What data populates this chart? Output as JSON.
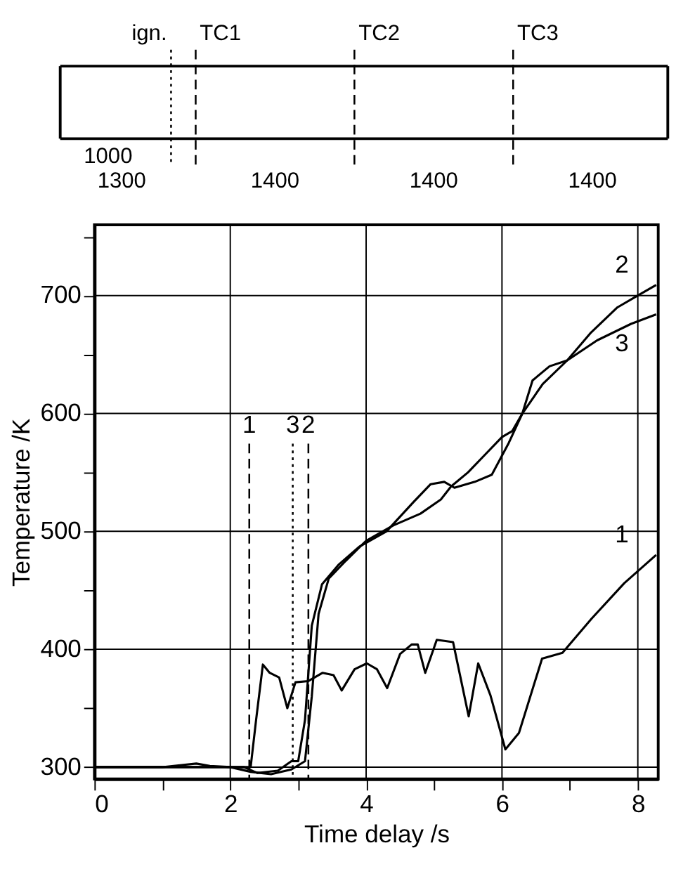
{
  "chart_data": [
    {
      "type": "other",
      "annotations": [
        "ign.",
        "TC1",
        "TC2",
        "TC3",
        "1000",
        "1300",
        "1400",
        "1400",
        "1400"
      ]
    },
    {
      "type": "line",
      "xlabel": "Time delay /s",
      "ylabel": "Temperature /K",
      "xlim": [
        0,
        8.3
      ],
      "ylim": [
        290,
        760
      ],
      "xticks": [
        0,
        {
          "value": 1,
          "label": null
        },
        2,
        {
          "value": 3,
          "label": null
        },
        4,
        {
          "value": 5,
          "label": null
        },
        6,
        {
          "value": 7,
          "label": null
        },
        8
      ],
      "yticks": [
        300,
        {
          "value": 350,
          "label": null
        },
        400,
        {
          "value": 450,
          "label": null
        },
        500,
        {
          "value": 550,
          "label": null
        },
        600,
        {
          "value": 650,
          "label": null
        },
        700,
        {
          "value": 750,
          "label": null
        }
      ],
      "grid": true,
      "line_style": "solid",
      "series": [
        {
          "color": "#000000",
          "x": [
            0,
            1,
            1.5,
            1.7,
            2.0,
            2.3,
            2.38,
            2.48,
            2.58,
            2.72,
            2.84,
            2.96,
            3.15,
            3.36,
            3.52,
            3.64,
            3.83,
            4.01,
            4.16,
            4.31,
            4.5,
            4.67,
            4.76,
            4.87,
            5.04,
            5.28,
            5.51,
            5.65,
            5.83,
            6.05,
            6.25,
            6.59,
            6.89,
            7.32,
            7.8,
            8.27
          ],
          "values": [
            300,
            300,
            303,
            301,
            300,
            300,
            340,
            387,
            380,
            376,
            350,
            372,
            373,
            380,
            378,
            365,
            383,
            388,
            383,
            367,
            396,
            404,
            404,
            380,
            408,
            406,
            343,
            388,
            361,
            315,
            329,
            392,
            397,
            426,
            456,
            480
          ]
        },
        {
          "color": "#000000",
          "x": [
            0,
            1,
            2.0,
            2.3,
            2.6,
            2.9,
            3.1,
            3.2,
            3.3,
            3.45,
            3.7,
            4.0,
            4.4,
            4.8,
            5.1,
            5.25,
            5.5,
            5.75,
            6.0,
            6.15,
            6.3,
            6.45,
            6.7,
            6.96,
            7.3,
            7.7,
            8.0,
            8.27
          ],
          "values": [
            300,
            300,
            300,
            296,
            294,
            298,
            305,
            360,
            430,
            460,
            475,
            492,
            505,
            515,
            527,
            538,
            550,
            565,
            580,
            585,
            600,
            628,
            640,
            645,
            668,
            690,
            700,
            709
          ]
        },
        {
          "color": "#000000",
          "x": [
            0,
            1,
            2.2,
            2.4,
            2.7,
            2.9,
            3.0,
            3.1,
            3.2,
            3.35,
            3.6,
            3.9,
            4.3,
            4.7,
            4.95,
            5.15,
            5.3,
            5.6,
            5.85,
            6.1,
            6.3,
            6.6,
            6.96,
            7.4,
            7.9,
            8.27
          ],
          "values": [
            300,
            300,
            300,
            295,
            297,
            305,
            305,
            340,
            420,
            455,
            472,
            487,
            500,
            525,
            540,
            542,
            537,
            542,
            548,
            575,
            600,
            625,
            645,
            662,
            676,
            684
          ]
        }
      ],
      "ref_lines": [
        {
          "axis": "x",
          "value": 2.28,
          "line_style": "dashed"
        },
        {
          "axis": "x",
          "value": 2.92,
          "line_style": "dotted"
        },
        {
          "axis": "x",
          "value": 3.15,
          "line_style": "dashed"
        }
      ],
      "annotations": [
        "1",
        "2",
        "3",
        "1",
        "3",
        "2"
      ]
    }
  ]
}
